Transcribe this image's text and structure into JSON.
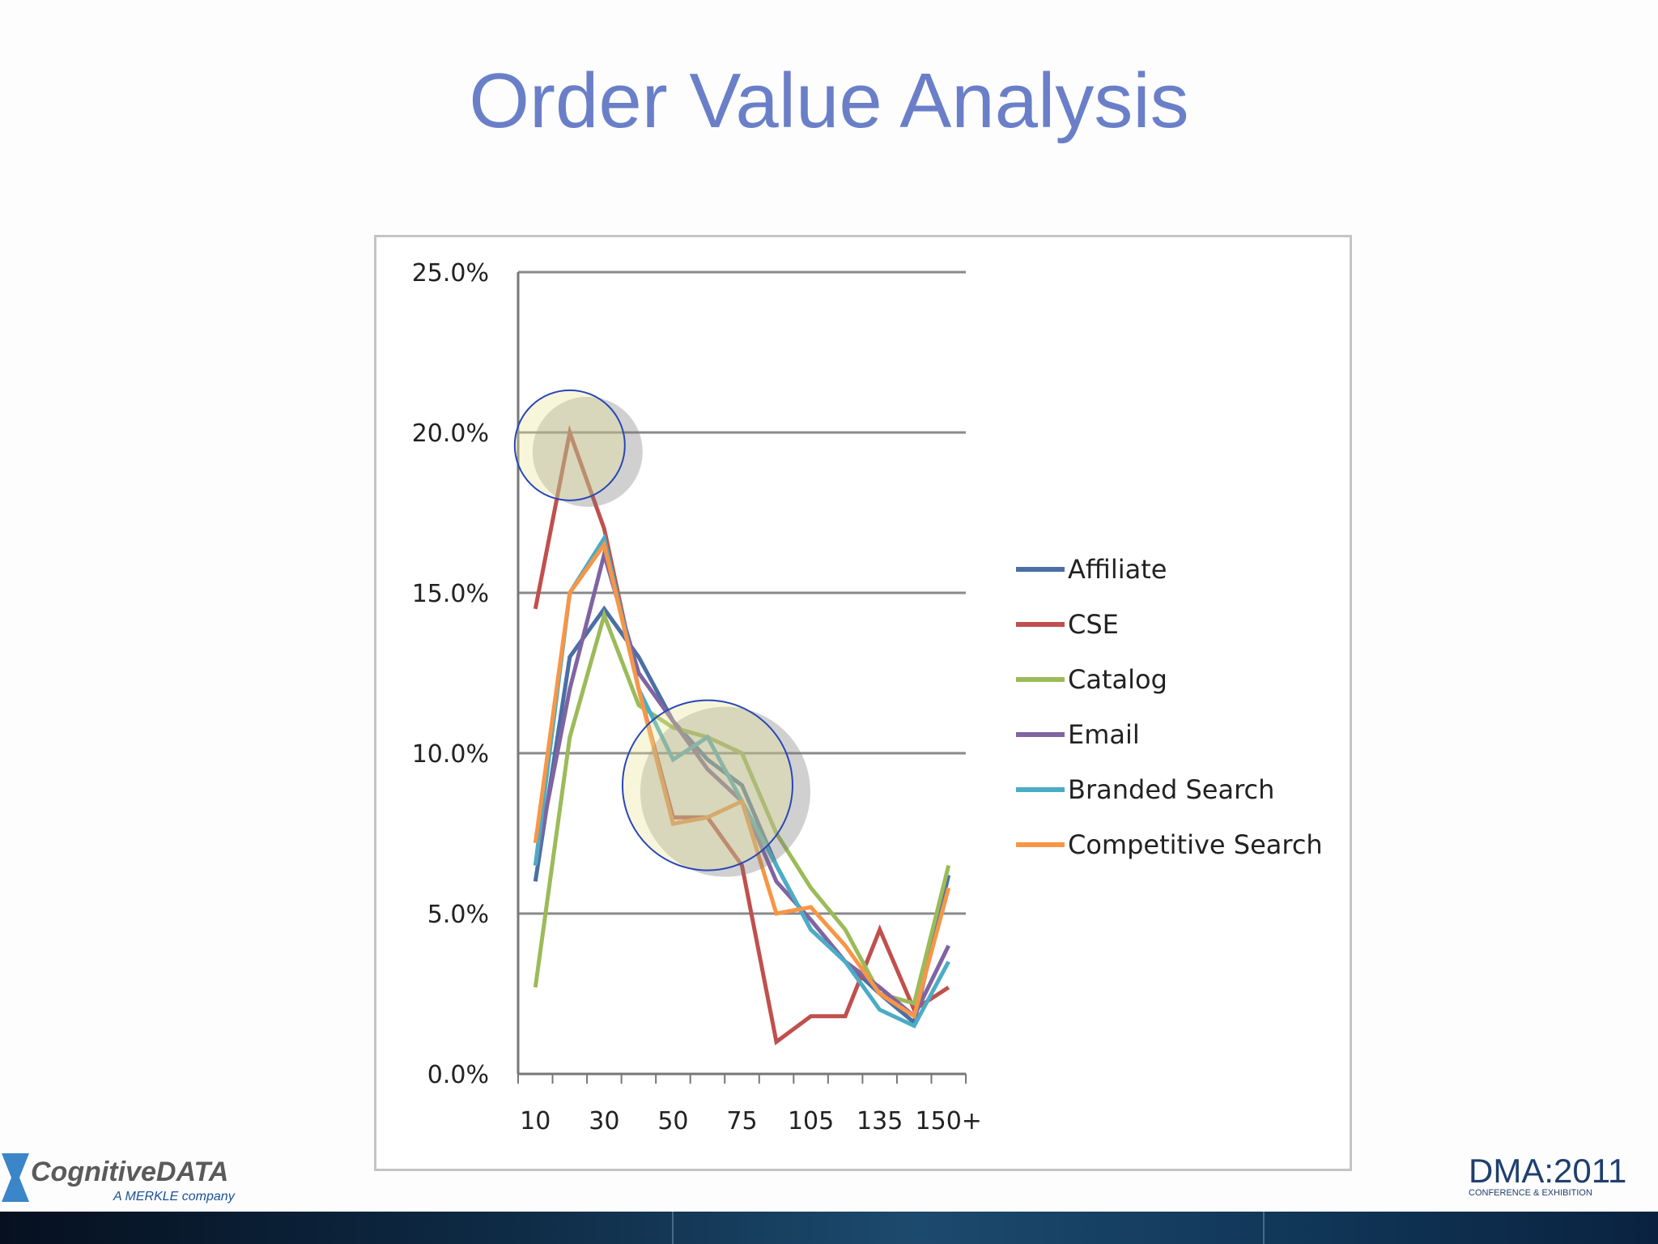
{
  "slide": {
    "title": "Order Value Analysis"
  },
  "chart_data": {
    "type": "line",
    "title": "",
    "xlabel": "",
    "ylabel": "",
    "ylim": [
      0,
      25
    ],
    "y_ticks": [
      "0.0%",
      "5.0%",
      "10.0%",
      "15.0%",
      "20.0%",
      "25.0%"
    ],
    "x_tick_labels": [
      "10",
      "30",
      "50",
      "75",
      "105",
      "135",
      "150+"
    ],
    "x_tick_label_positions": [
      1,
      3,
      5,
      7,
      9,
      11,
      13
    ],
    "x_count": 13,
    "grid": true,
    "legend_position": "right",
    "series": [
      {
        "name": "Affiliate",
        "color": "#4a6fa5",
        "values": [
          6.0,
          13.0,
          14.5,
          13.0,
          11.0,
          9.8,
          9.0,
          6.5,
          4.5,
          3.5,
          2.5,
          1.6,
          6.2
        ]
      },
      {
        "name": "CSE",
        "color": "#c0504d",
        "values": [
          14.5,
          20.0,
          17.0,
          12.0,
          8.0,
          8.0,
          6.5,
          1.0,
          1.8,
          1.8,
          4.5,
          2.0,
          2.7
        ]
      },
      {
        "name": "Catalog",
        "color": "#9bbb59",
        "values": [
          2.7,
          10.5,
          14.3,
          11.5,
          10.8,
          10.5,
          10.0,
          7.5,
          5.8,
          4.5,
          2.5,
          2.2,
          6.5
        ]
      },
      {
        "name": "Email",
        "color": "#8064a2",
        "values": [
          6.5,
          12.0,
          16.2,
          12.5,
          11.0,
          9.5,
          8.5,
          6.0,
          4.8,
          3.5,
          2.7,
          1.8,
          4.0
        ]
      },
      {
        "name": "Branded Search",
        "color": "#4bacc6",
        "values": [
          6.5,
          15.0,
          16.7,
          12.0,
          9.8,
          10.5,
          8.5,
          6.5,
          4.5,
          3.5,
          2.0,
          1.5,
          3.5
        ]
      },
      {
        "name": "Competitive Search",
        "color": "#f79646",
        "values": [
          7.2,
          15.0,
          16.5,
          12.0,
          7.8,
          8.0,
          8.5,
          5.0,
          5.2,
          4.0,
          2.5,
          1.8,
          5.8
        ]
      }
    ],
    "highlights": [
      {
        "x": 2,
        "y": 19.6,
        "label": ""
      },
      {
        "x": 6,
        "y": 9.0,
        "label": ""
      }
    ]
  },
  "logos": {
    "left": {
      "brand": "CognitiveDATA",
      "tagline": "A MERKLE company"
    },
    "right": {
      "brand": "DMA:2011",
      "tagline": "CONFERENCE & EXHIBITION"
    }
  }
}
